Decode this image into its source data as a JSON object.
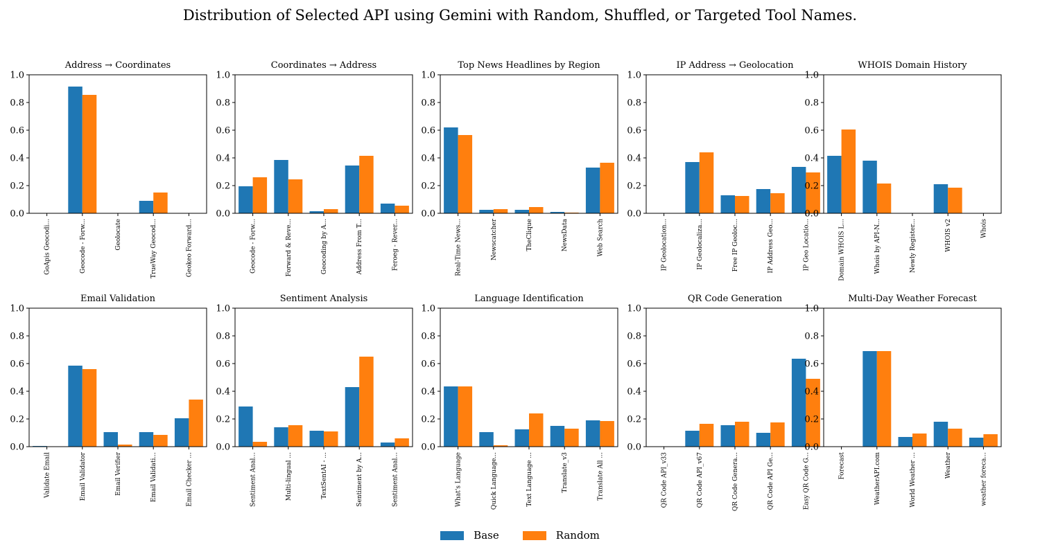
{
  "title": "Distribution of Selected API using Gemini with Random, Shuffled, or Targeted Tool Names.",
  "colors": {
    "base": "#1f77b4",
    "random": "#ff7f0e"
  },
  "legend": [
    {
      "label": "Base",
      "color": "#1f77b4"
    },
    {
      "label": "Random",
      "color": "#ff7f0e"
    }
  ],
  "chart_data": [
    {
      "type": "bar",
      "title": "Address → Coordinates",
      "ylim": [
        0,
        1
      ],
      "yticks": [
        "0.0",
        "0.2",
        "0.4",
        "0.6",
        "0.8",
        "1.0"
      ],
      "grid": false,
      "categories": [
        "GoApis Geocodi...",
        "Geocode - Forw...",
        "Geolocate",
        "TrueWay Geocod...",
        "Geokeo Forward..."
      ],
      "series": [
        {
          "name": "Base",
          "values": [
            0,
            0.915,
            0,
            0.09,
            0
          ]
        },
        {
          "name": "Random",
          "values": [
            0,
            0.855,
            0,
            0.15,
            0
          ]
        }
      ]
    },
    {
      "type": "bar",
      "title": "Coordinates → Address",
      "ylim": [
        0,
        1
      ],
      "yticks": [
        "0.0",
        "0.2",
        "0.4",
        "0.6",
        "0.8",
        "1.0"
      ],
      "grid": false,
      "categories": [
        "Geocode - Forw...",
        "Forward & Reve...",
        "Geocoding by A...",
        "Address From T...",
        "Feroeg - Rever..."
      ],
      "series": [
        {
          "name": "Base",
          "values": [
            0.195,
            0.385,
            0.015,
            0.345,
            0.07
          ]
        },
        {
          "name": "Random",
          "values": [
            0.26,
            0.245,
            0.03,
            0.415,
            0.055
          ]
        }
      ]
    },
    {
      "type": "bar",
      "title": "Top News Headlines by Region",
      "ylim": [
        0,
        1
      ],
      "yticks": [
        "0.0",
        "0.2",
        "0.4",
        "0.6",
        "0.8",
        "1.0"
      ],
      "grid": false,
      "categories": [
        "Real-Time News...",
        "Newscatcher",
        "TheClique",
        "NewsData",
        "Web Search"
      ],
      "series": [
        {
          "name": "Base",
          "values": [
            0.62,
            0.025,
            0.025,
            0.01,
            0.33
          ]
        },
        {
          "name": "Random",
          "values": [
            0.565,
            0.03,
            0.045,
            0.005,
            0.365
          ]
        }
      ]
    },
    {
      "type": "bar",
      "title": "IP Address → Geolocation",
      "ylim": [
        0,
        1
      ],
      "yticks": [
        "0.0",
        "0.2",
        "0.4",
        "0.6",
        "0.8",
        "1.0"
      ],
      "grid": false,
      "categories": [
        "IP Geolocation...",
        "IP Geolocaliza...",
        "Free IP Geoloc...",
        "IP Address Geo...",
        "IP Geo Locatio..."
      ],
      "series": [
        {
          "name": "Base",
          "values": [
            0,
            0.37,
            0.13,
            0.175,
            0.335
          ]
        },
        {
          "name": "Random",
          "values": [
            0,
            0.44,
            0.125,
            0.145,
            0.295
          ]
        }
      ]
    },
    {
      "type": "bar",
      "title": "WHOIS Domain History",
      "ylim": [
        0,
        1
      ],
      "yticks": [
        "0.0",
        "0.2",
        "0.4",
        "0.6",
        "0.8",
        "1.0"
      ],
      "grid": false,
      "categories": [
        "Domain WHOIS L...",
        "Whois by API-N...",
        "Newly Register...",
        "WHOIS v2",
        "Whois"
      ],
      "series": [
        {
          "name": "Base",
          "values": [
            0.415,
            0.38,
            0,
            0.21,
            0
          ]
        },
        {
          "name": "Random",
          "values": [
            0.605,
            0.215,
            0,
            0.185,
            0
          ]
        }
      ]
    },
    {
      "type": "bar",
      "title": "Email Validation",
      "ylim": [
        0,
        1
      ],
      "yticks": [
        "0.0",
        "0.2",
        "0.4",
        "0.6",
        "0.8",
        "1.0"
      ],
      "grid": false,
      "categories": [
        "Validate Email",
        "Email Validator",
        "Email Verifier",
        "Email Validati...",
        "Email Checker ..."
      ],
      "series": [
        {
          "name": "Base",
          "values": [
            0.005,
            0.585,
            0.105,
            0.105,
            0.205
          ]
        },
        {
          "name": "Random",
          "values": [
            0,
            0.56,
            0.015,
            0.085,
            0.34
          ]
        }
      ]
    },
    {
      "type": "bar",
      "title": "Sentiment Analysis",
      "ylim": [
        0,
        1
      ],
      "yticks": [
        "0.0",
        "0.2",
        "0.4",
        "0.6",
        "0.8",
        "1.0"
      ],
      "grid": false,
      "categories": [
        "Sentiment Anal...",
        "Multi-lingual ...",
        "TextSentAI - ...",
        "Sentiment by A...",
        "Sentiment Anal..."
      ],
      "series": [
        {
          "name": "Base",
          "values": [
            0.29,
            0.14,
            0.115,
            0.43,
            0.03
          ]
        },
        {
          "name": "Random",
          "values": [
            0.035,
            0.155,
            0.11,
            0.65,
            0.06
          ]
        }
      ]
    },
    {
      "type": "bar",
      "title": "Language Identification",
      "ylim": [
        0,
        1
      ],
      "yticks": [
        "0.0",
        "0.2",
        "0.4",
        "0.6",
        "0.8",
        "1.0"
      ],
      "grid": false,
      "categories": [
        "What's Language",
        "Quick Language...",
        "Text Language ...",
        "Translate_v3",
        "Translate All ..."
      ],
      "series": [
        {
          "name": "Base",
          "values": [
            0.435,
            0.105,
            0.125,
            0.15,
            0.19
          ]
        },
        {
          "name": "Random",
          "values": [
            0.435,
            0.01,
            0.24,
            0.13,
            0.185
          ]
        }
      ]
    },
    {
      "type": "bar",
      "title": "QR Code Generation",
      "ylim": [
        0,
        1
      ],
      "yticks": [
        "0.0",
        "0.2",
        "0.4",
        "0.6",
        "0.8",
        "1.0"
      ],
      "grid": false,
      "categories": [
        "QR Code API_v33",
        "QR Code API_v67",
        "QR Code Genera...",
        "QR Code API Ge...",
        "Easy QR Code G..."
      ],
      "series": [
        {
          "name": "Base",
          "values": [
            0,
            0.115,
            0.155,
            0.1,
            0.635
          ]
        },
        {
          "name": "Random",
          "values": [
            0,
            0.165,
            0.18,
            0.175,
            0.49
          ]
        }
      ]
    },
    {
      "type": "bar",
      "title": "Multi-Day Weather Forecast",
      "ylim": [
        0,
        1
      ],
      "yticks": [
        "0.0",
        "0.2",
        "0.4",
        "0.6",
        "0.8",
        "1.0"
      ],
      "grid": false,
      "categories": [
        "Forecast",
        "WeatherAPI.com",
        "World Weather ...",
        "Weather",
        "weather foreca..."
      ],
      "series": [
        {
          "name": "Base",
          "values": [
            0,
            0.69,
            0.07,
            0.18,
            0.065
          ]
        },
        {
          "name": "Random",
          "values": [
            0,
            0.69,
            0.095,
            0.13,
            0.09
          ]
        }
      ]
    }
  ]
}
